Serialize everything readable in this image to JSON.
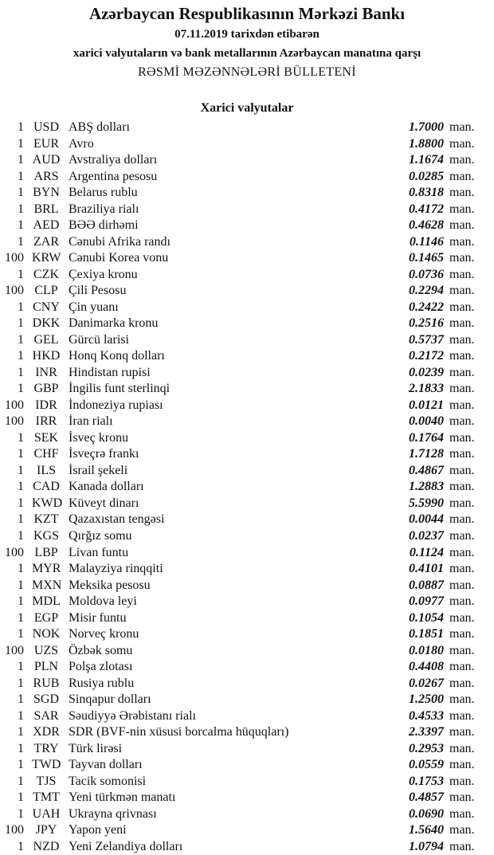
{
  "header": {
    "bank": "Azərbaycan Respublikasının Mərkəzi Bankı",
    "date_line": "07.11.2019  tarixdən etibarən",
    "subtitle": "xarici valyutaların və bank metallarının Azərbaycan manatına qarşı",
    "title": "RƏSMİ MƏZƏNNƏLƏRİ BÜLLETENİ"
  },
  "section_title": "Xarici valyutalar",
  "unit": "man.",
  "rates": [
    {
      "nominal": "1",
      "code": "USD",
      "name": "ABŞ dolları",
      "rate": "1.7000"
    },
    {
      "nominal": "1",
      "code": "EUR",
      "name": "Avro",
      "rate": "1.8800"
    },
    {
      "nominal": "1",
      "code": "AUD",
      "name": "Avstraliya dolları",
      "rate": "1.1674"
    },
    {
      "nominal": "1",
      "code": "ARS",
      "name": "Argentina pesosu",
      "rate": "0.0285"
    },
    {
      "nominal": "1",
      "code": "BYN",
      "name": "Belarus rublu",
      "rate": "0.8318"
    },
    {
      "nominal": "1",
      "code": "BRL",
      "name": "Braziliya rialı",
      "rate": "0.4172"
    },
    {
      "nominal": "1",
      "code": "AED",
      "name": "BƏƏ dirhəmi",
      "rate": "0.4628"
    },
    {
      "nominal": "1",
      "code": "ZAR",
      "name": "Cənubi Afrika randı",
      "rate": "0.1146"
    },
    {
      "nominal": "100",
      "code": "KRW",
      "name": "Cənubi Korea vonu",
      "rate": "0.1465"
    },
    {
      "nominal": "1",
      "code": "CZK",
      "name": "Çexiya kronu",
      "rate": "0.0736"
    },
    {
      "nominal": "100",
      "code": "CLP",
      "name": "Çili Pesosu",
      "rate": "0.2294"
    },
    {
      "nominal": "1",
      "code": "CNY",
      "name": "Çin yuanı",
      "rate": "0.2422"
    },
    {
      "nominal": "1",
      "code": "DKK",
      "name": "Danimarka kronu",
      "rate": "0.2516"
    },
    {
      "nominal": "1",
      "code": "GEL",
      "name": "Gürcü larisi",
      "rate": "0.5737"
    },
    {
      "nominal": "1",
      "code": "HKD",
      "name": "Honq Konq dolları",
      "rate": "0.2172"
    },
    {
      "nominal": "1",
      "code": "INR",
      "name": "Hindistan rupisi",
      "rate": "0.0239"
    },
    {
      "nominal": "1",
      "code": "GBP",
      "name": "İngilis funt sterlinqi",
      "rate": "2.1833"
    },
    {
      "nominal": "100",
      "code": "IDR",
      "name": "İndoneziya rupiası",
      "rate": "0.0121"
    },
    {
      "nominal": "100",
      "code": "IRR",
      "name": "İran rialı",
      "rate": "0.0040"
    },
    {
      "nominal": "1",
      "code": "SEK",
      "name": "İsveç kronu",
      "rate": "0.1764"
    },
    {
      "nominal": "1",
      "code": "CHF",
      "name": "İsveçrə frankı",
      "rate": "1.7128"
    },
    {
      "nominal": "1",
      "code": "ILS",
      "name": "İsrail şekeli",
      "rate": "0.4867"
    },
    {
      "nominal": "1",
      "code": "CAD",
      "name": "Kanada dolları",
      "rate": "1.2883"
    },
    {
      "nominal": "1",
      "code": "KWD",
      "name": "Küveyt dinarı",
      "rate": "5.5990"
    },
    {
      "nominal": "1",
      "code": "KZT",
      "name": "Qazaxıstan tengəsi",
      "rate": "0.0044"
    },
    {
      "nominal": "1",
      "code": "KGS",
      "name": "Qırğız somu",
      "rate": "0.0237"
    },
    {
      "nominal": "100",
      "code": "LBP",
      "name": "Livan funtu",
      "rate": "0.1124"
    },
    {
      "nominal": "1",
      "code": "MYR",
      "name": "Malayziya rinqqiti",
      "rate": "0.4101"
    },
    {
      "nominal": "1",
      "code": "MXN",
      "name": "Meksika pesosu",
      "rate": "0.0887"
    },
    {
      "nominal": "1",
      "code": "MDL",
      "name": "Moldova leyi",
      "rate": "0.0977"
    },
    {
      "nominal": "1",
      "code": "EGP",
      "name": "Misir funtu",
      "rate": "0.1054"
    },
    {
      "nominal": "1",
      "code": "NOK",
      "name": "Norveç kronu",
      "rate": "0.1851"
    },
    {
      "nominal": "100",
      "code": "UZS",
      "name": "Özbək somu",
      "rate": "0.0180"
    },
    {
      "nominal": "1",
      "code": "PLN",
      "name": "Polşa zlotası",
      "rate": "0.4408"
    },
    {
      "nominal": "1",
      "code": "RUB",
      "name": "Rusiya rublu",
      "rate": "0.0267"
    },
    {
      "nominal": "1",
      "code": "SGD",
      "name": "Sinqapur dolları",
      "rate": "1.2500"
    },
    {
      "nominal": "1",
      "code": "SAR",
      "name": "Səudiyyə Ərəbistanı rialı",
      "rate": "0.4533"
    },
    {
      "nominal": "1",
      "code": "XDR",
      "name": "SDR (BVF-nin xüsusi borcalma hüquqları)",
      "rate": "2.3397"
    },
    {
      "nominal": "1",
      "code": "TRY",
      "name": "Türk lirəsi",
      "rate": "0.2953"
    },
    {
      "nominal": "1",
      "code": "TWD",
      "name": "Tayvan dolları",
      "rate": "0.0559"
    },
    {
      "nominal": "1",
      "code": "TJS",
      "name": "Tacik somonisi",
      "rate": "0.1753"
    },
    {
      "nominal": "1",
      "code": "TMT",
      "name": "Yeni türkmən manatı",
      "rate": "0.4857"
    },
    {
      "nominal": "1",
      "code": "UAH",
      "name": "Ukrayna qrivnası",
      "rate": "0.0690"
    },
    {
      "nominal": "100",
      "code": "JPY",
      "name": "Yapon yeni",
      "rate": "1.5640"
    },
    {
      "nominal": "1",
      "code": "NZD",
      "name": "Yeni Zelandiya dolları",
      "rate": "1.0794"
    }
  ]
}
